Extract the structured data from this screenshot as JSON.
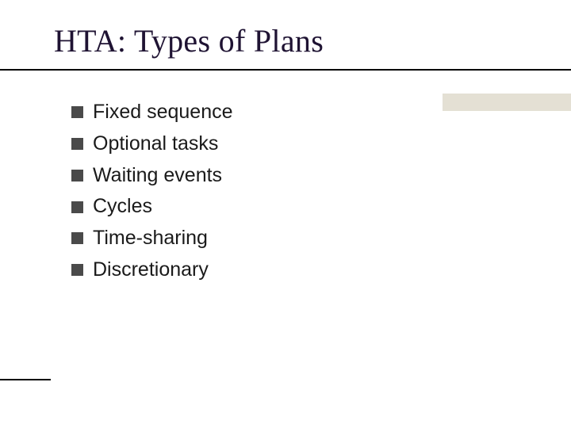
{
  "slide": {
    "title": "HTA: Types of Plans",
    "title_color": "#1f1333",
    "title_fontsize": 40,
    "title_font": "Times New Roman",
    "underline_color": "#000000",
    "underline_width": 2,
    "background_color": "#ffffff",
    "bullet_color": "#4a4a4a",
    "bullet_size": 15,
    "item_fontsize": 25,
    "item_color": "#1a1a1a",
    "item_font": "Arial",
    "items": [
      "Fixed sequence",
      "Optional tasks",
      "Waiting events",
      "Cycles",
      "Time-sharing",
      "Discretionary"
    ],
    "decoration": {
      "corner_block_color": "#e4e0d4",
      "corner_block_width": 162,
      "corner_block_height": 22,
      "bottom_line_color": "#000000",
      "bottom_line_width": 64,
      "bottom_line_height": 2
    }
  }
}
